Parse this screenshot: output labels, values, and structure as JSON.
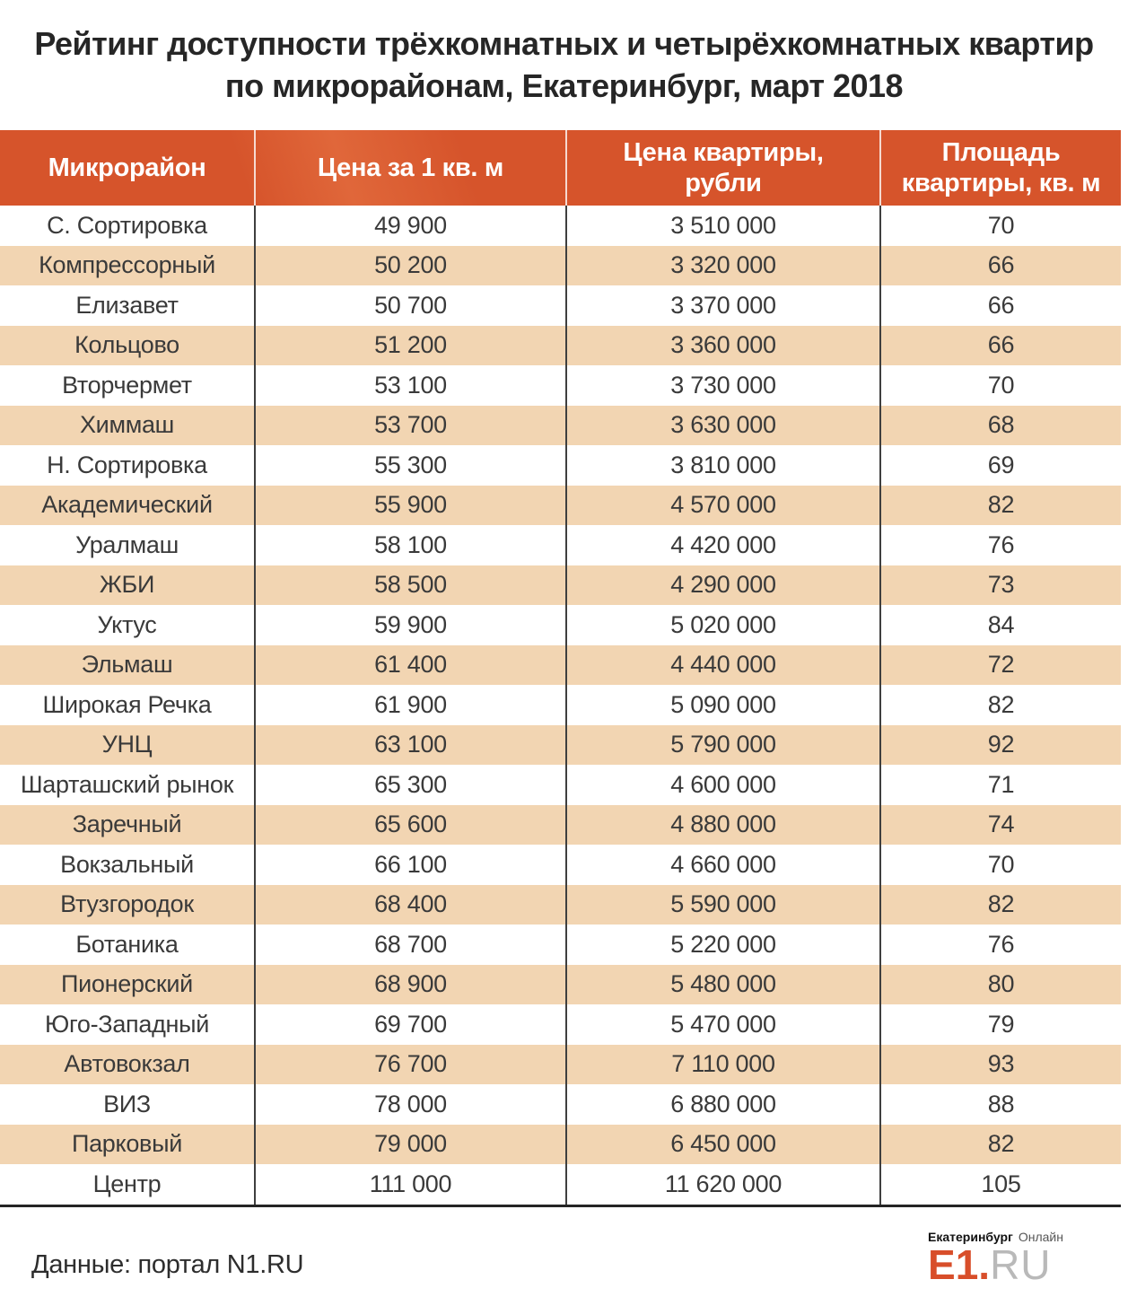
{
  "title": {
    "line1": "Рейтинг доступности трёхкомнатных и четырёхкомнатных квартир",
    "line2": "по микрорайонам, Екатеринбург, март 2018"
  },
  "table": {
    "headers": [
      {
        "lines": [
          "Микрорайон",
          ""
        ]
      },
      {
        "lines": [
          "Цена за 1 кв. м",
          ""
        ]
      },
      {
        "lines": [
          "Цена квартиры,",
          "рубли"
        ]
      },
      {
        "lines": [
          "Площадь",
          "квартиры, кв. м"
        ]
      }
    ],
    "rows": [
      {
        "district": "С. Сортировка",
        "price_per_sqm": "49 900",
        "apartment_price": "3 510 000",
        "area": "70"
      },
      {
        "district": "Компрессорный",
        "price_per_sqm": "50 200",
        "apartment_price": "3 320 000",
        "area": "66"
      },
      {
        "district": "Елизавет",
        "price_per_sqm": "50 700",
        "apartment_price": "3 370 000",
        "area": "66"
      },
      {
        "district": "Кольцово",
        "price_per_sqm": "51 200",
        "apartment_price": "3 360 000",
        "area": "66"
      },
      {
        "district": "Вторчермет",
        "price_per_sqm": "53 100",
        "apartment_price": "3 730 000",
        "area": "70"
      },
      {
        "district": "Химмаш",
        "price_per_sqm": "53 700",
        "apartment_price": "3 630 000",
        "area": "68"
      },
      {
        "district": "Н. Сортировка",
        "price_per_sqm": "55 300",
        "apartment_price": "3 810 000",
        "area": "69"
      },
      {
        "district": "Академический",
        "price_per_sqm": "55 900",
        "apartment_price": "4 570 000",
        "area": "82"
      },
      {
        "district": "Уралмаш",
        "price_per_sqm": "58 100",
        "apartment_price": "4 420 000",
        "area": "76"
      },
      {
        "district": "ЖБИ",
        "price_per_sqm": "58 500",
        "apartment_price": "4 290 000",
        "area": "73"
      },
      {
        "district": "Уктус",
        "price_per_sqm": "59 900",
        "apartment_price": "5 020 000",
        "area": "84"
      },
      {
        "district": "Эльмаш",
        "price_per_sqm": "61 400",
        "apartment_price": "4 440 000",
        "area": "72"
      },
      {
        "district": "Широкая Речка",
        "price_per_sqm": "61 900",
        "apartment_price": "5 090 000",
        "area": "82"
      },
      {
        "district": "УНЦ",
        "price_per_sqm": "63 100",
        "apartment_price": "5 790 000",
        "area": "92"
      },
      {
        "district": "Шарташский рынок",
        "price_per_sqm": "65 300",
        "apartment_price": "4 600 000",
        "area": "71"
      },
      {
        "district": "Заречный",
        "price_per_sqm": "65 600",
        "apartment_price": "4 880 000",
        "area": "74"
      },
      {
        "district": "Вокзальный",
        "price_per_sqm": "66 100",
        "apartment_price": "4 660 000",
        "area": "70"
      },
      {
        "district": "Втузгородок",
        "price_per_sqm": "68 400",
        "apartment_price": "5 590 000",
        "area": "82"
      },
      {
        "district": "Ботаника",
        "price_per_sqm": "68 700",
        "apartment_price": "5 220 000",
        "area": "76"
      },
      {
        "district": "Пионерский",
        "price_per_sqm": "68 900",
        "apartment_price": "5 480 000",
        "area": "80"
      },
      {
        "district": "Юго-Западный",
        "price_per_sqm": "69 700",
        "apartment_price": "5 470 000",
        "area": "79"
      },
      {
        "district": "Автовокзал",
        "price_per_sqm": "76 700",
        "apartment_price": "7 110 000",
        "area": "93"
      },
      {
        "district": "ВИЗ",
        "price_per_sqm": "78 000",
        "apartment_price": "6 880 000",
        "area": "88"
      },
      {
        "district": "Парковый",
        "price_per_sqm": "79 000",
        "apartment_price": "6 450 000",
        "area": "82"
      },
      {
        "district": "Центр",
        "price_per_sqm": "111 000",
        "apartment_price": "11 620 000",
        "area": "105"
      }
    ]
  },
  "footer": {
    "source": "Данные: портал N1.RU",
    "logo": {
      "city": "Екатеринбург",
      "online": "Онлайн",
      "accent": "E1.",
      "gray": "RU"
    }
  },
  "colors": {
    "header_bg": "#d6542b",
    "header_text": "#ffffff",
    "row_alt_bg": "#f2d5b2",
    "row_bg": "#ffffff",
    "body_text": "#3a3a3a",
    "divider": "#3f3f3f",
    "logo_accent": "#d84e2a",
    "logo_gray": "#b9b9b9"
  },
  "chart_data": {
    "type": "table",
    "title": "Рейтинг доступности трёхкомнатных и четырёхкомнатных квартир по микрорайонам, Екатеринбург, март 2018",
    "columns": [
      "Микрорайон",
      "Цена за 1 кв. м",
      "Цена квартиры, рубли",
      "Площадь квартиры, кв. м"
    ],
    "rows": [
      [
        "С. Сортировка",
        49900,
        3510000,
        70
      ],
      [
        "Компрессорный",
        50200,
        3320000,
        66
      ],
      [
        "Елизавет",
        50700,
        3370000,
        66
      ],
      [
        "Кольцово",
        51200,
        3360000,
        66
      ],
      [
        "Вторчермет",
        53100,
        3730000,
        70
      ],
      [
        "Химмаш",
        53700,
        3630000,
        68
      ],
      [
        "Н. Сортировка",
        55300,
        3810000,
        69
      ],
      [
        "Академический",
        55900,
        4570000,
        82
      ],
      [
        "Уралмаш",
        58100,
        4420000,
        76
      ],
      [
        "ЖБИ",
        58500,
        4290000,
        73
      ],
      [
        "Уктус",
        59900,
        5020000,
        84
      ],
      [
        "Эльмаш",
        61400,
        4440000,
        72
      ],
      [
        "Широкая Речка",
        61900,
        5090000,
        82
      ],
      [
        "УНЦ",
        63100,
        5790000,
        92
      ],
      [
        "Шарташский рынок",
        65300,
        4600000,
        71
      ],
      [
        "Заречный",
        65600,
        4880000,
        74
      ],
      [
        "Вокзальный",
        66100,
        4660000,
        70
      ],
      [
        "Втузгородок",
        68400,
        5590000,
        82
      ],
      [
        "Ботаника",
        68700,
        5220000,
        76
      ],
      [
        "Пионерский",
        68900,
        5480000,
        80
      ],
      [
        "Юго-Западный",
        69700,
        5470000,
        79
      ],
      [
        "Автовокзал",
        76700,
        7110000,
        93
      ],
      [
        "ВИЗ",
        78000,
        6880000,
        88
      ],
      [
        "Парковый",
        79000,
        6450000,
        82
      ],
      [
        "Центр",
        111000,
        11620000,
        105
      ]
    ],
    "source": "Данные: портал N1.RU"
  }
}
